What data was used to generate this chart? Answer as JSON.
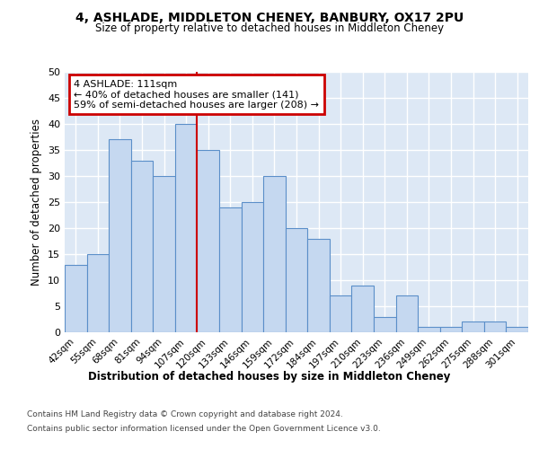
{
  "title1": "4, ASHLADE, MIDDLETON CHENEY, BANBURY, OX17 2PU",
  "title2": "Size of property relative to detached houses in Middleton Cheney",
  "xlabel": "Distribution of detached houses by size in Middleton Cheney",
  "ylabel": "Number of detached properties",
  "categories": [
    "42sqm",
    "55sqm",
    "68sqm",
    "81sqm",
    "94sqm",
    "107sqm",
    "120sqm",
    "133sqm",
    "146sqm",
    "159sqm",
    "172sqm",
    "184sqm",
    "197sqm",
    "210sqm",
    "223sqm",
    "236sqm",
    "249sqm",
    "262sqm",
    "275sqm",
    "288sqm",
    "301sqm"
  ],
  "values": [
    13,
    15,
    37,
    33,
    30,
    40,
    35,
    24,
    25,
    30,
    20,
    18,
    7,
    9,
    3,
    7,
    1,
    1,
    2,
    2,
    1
  ],
  "bar_color": "#c5d8f0",
  "bar_edge_color": "#5b8fc9",
  "vline_x_idx": 5,
  "vline_color": "#cc0000",
  "annotation_lines": [
    "4 ASHLADE: 111sqm",
    "← 40% of detached houses are smaller (141)",
    "59% of semi-detached houses are larger (208) →"
  ],
  "annotation_box_color": "#cc0000",
  "ylim": [
    0,
    50
  ],
  "yticks": [
    0,
    5,
    10,
    15,
    20,
    25,
    30,
    35,
    40,
    45,
    50
  ],
  "background_color": "#dde8f5",
  "footer1": "Contains HM Land Registry data © Crown copyright and database right 2024.",
  "footer2": "Contains public sector information licensed under the Open Government Licence v3.0."
}
